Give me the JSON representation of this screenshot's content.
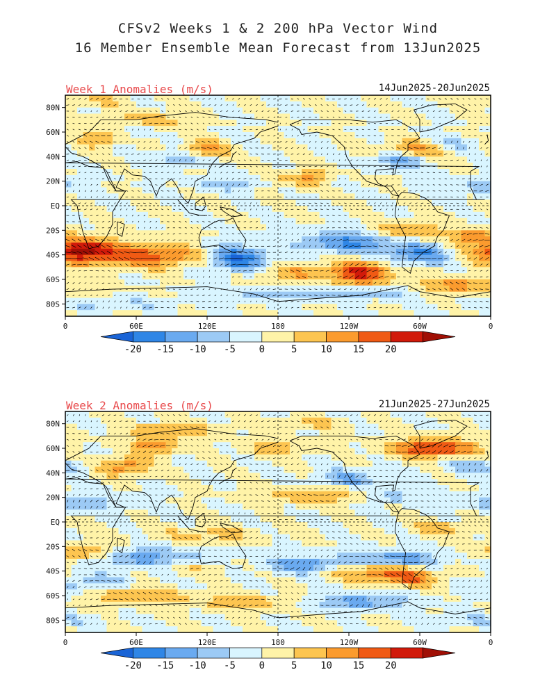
{
  "header": {
    "line1": "CFSv2 Weeks 1 & 2 200 hPa Vector Wind",
    "line2": "16 Member Ensemble Mean Forecast from 13Jun2025"
  },
  "panels": [
    {
      "title": "Week 1 Anomalies (m/s)",
      "dates": "14Jun2025-20Jun2025"
    },
    {
      "title": "Week 2 Anomalies (m/s)",
      "dates": "21Jun2025-27Jun2025"
    }
  ],
  "lat_labels": [
    "80N",
    "60N",
    "40N",
    "20N",
    "EQ",
    "20S",
    "40S",
    "60S",
    "80S"
  ],
  "lon_labels": [
    "0",
    "60E",
    "120E",
    "180",
    "120W",
    "60W",
    "0"
  ],
  "colorbar": {
    "labels": [
      "-20",
      "-15",
      "-10",
      "-5",
      "0",
      "5",
      "10",
      "15",
      "20"
    ],
    "colors": [
      "#1a64d6",
      "#2f86e6",
      "#6aaaf0",
      "#9ccaf5",
      "#d9f5ff",
      "#fff3a8",
      "#fdc550",
      "#fb9b2e",
      "#f05a14",
      "#d11a0a",
      "#a00f05"
    ]
  },
  "colors": {
    "title_red": "#e8484a",
    "coast": "#000000",
    "vector": "#000000"
  }
}
